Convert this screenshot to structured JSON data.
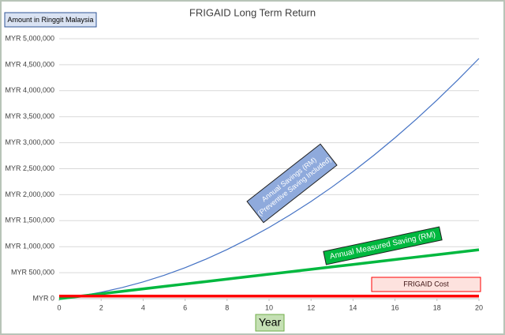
{
  "chart_data": {
    "type": "line",
    "title": "FRIGAID Long Term Return",
    "y_label": "Amount in Ringgit Malaysia",
    "x_label": "Year",
    "x": [
      0,
      1,
      2,
      3,
      4,
      5,
      6,
      7,
      8,
      9,
      10,
      11,
      12,
      13,
      14,
      15,
      16,
      17,
      18,
      19,
      20
    ],
    "series": [
      {
        "label": [
          "Annual Savings (RM)",
          "(Preventive Saving Included)"
        ],
        "color": "#4472c4",
        "label_fill": "#8faadc",
        "values": [
          0,
          52400,
          123600,
          213600,
          322400,
          450000,
          596400,
          761600,
          945600,
          1148400,
          1370000,
          1610400,
          1869600,
          2147600,
          2444400,
          2760000,
          3094400,
          3447600,
          3819600,
          4210400,
          4620000
        ]
      },
      {
        "label": [
          "Annual Measured Saving (RM)"
        ],
        "color": "#00b83f",
        "label_fill": "#00b83f",
        "values": [
          0,
          47000,
          94000,
          141000,
          188000,
          235000,
          282000,
          329000,
          376000,
          423000,
          470000,
          517000,
          564000,
          611000,
          658000,
          705000,
          752000,
          799000,
          846000,
          893000,
          940000
        ]
      },
      {
        "label": [
          "FRIGAID Cost"
        ],
        "color": "#ff0000",
        "label_fill": "#fde2de",
        "values": [
          50000,
          50000,
          50000,
          50000,
          50000,
          50000,
          50000,
          50000,
          50000,
          50000,
          50000,
          50000,
          50000,
          50000,
          50000,
          50000,
          50000,
          50000,
          50000,
          50000,
          50000
        ]
      }
    ],
    "xlim": [
      0,
      20
    ],
    "xticks": [
      0,
      2,
      4,
      6,
      8,
      10,
      12,
      14,
      16,
      18,
      20
    ],
    "ylim": [
      0,
      5000000
    ],
    "yticks": [
      {
        "value": 0,
        "label": "MYR 0"
      },
      {
        "value": 500000,
        "label": "MYR 500,000"
      },
      {
        "value": 1000000,
        "label": "MYR 1,000,000"
      },
      {
        "value": 1500000,
        "label": "MYR 1,500,000"
      },
      {
        "value": 2000000,
        "label": "MYR 2,000,000"
      },
      {
        "value": 2500000,
        "label": "MYR 2,500,000"
      },
      {
        "value": 3000000,
        "label": "MYR 3,000,000"
      },
      {
        "value": 3500000,
        "label": "MYR 3,500,000"
      },
      {
        "value": 4000000,
        "label": "MYR 4,000,000"
      },
      {
        "value": 4500000,
        "label": "MYR 4,500,000"
      },
      {
        "value": 5000000,
        "label": "MYR 5,000,000"
      }
    ],
    "grid": true
  }
}
